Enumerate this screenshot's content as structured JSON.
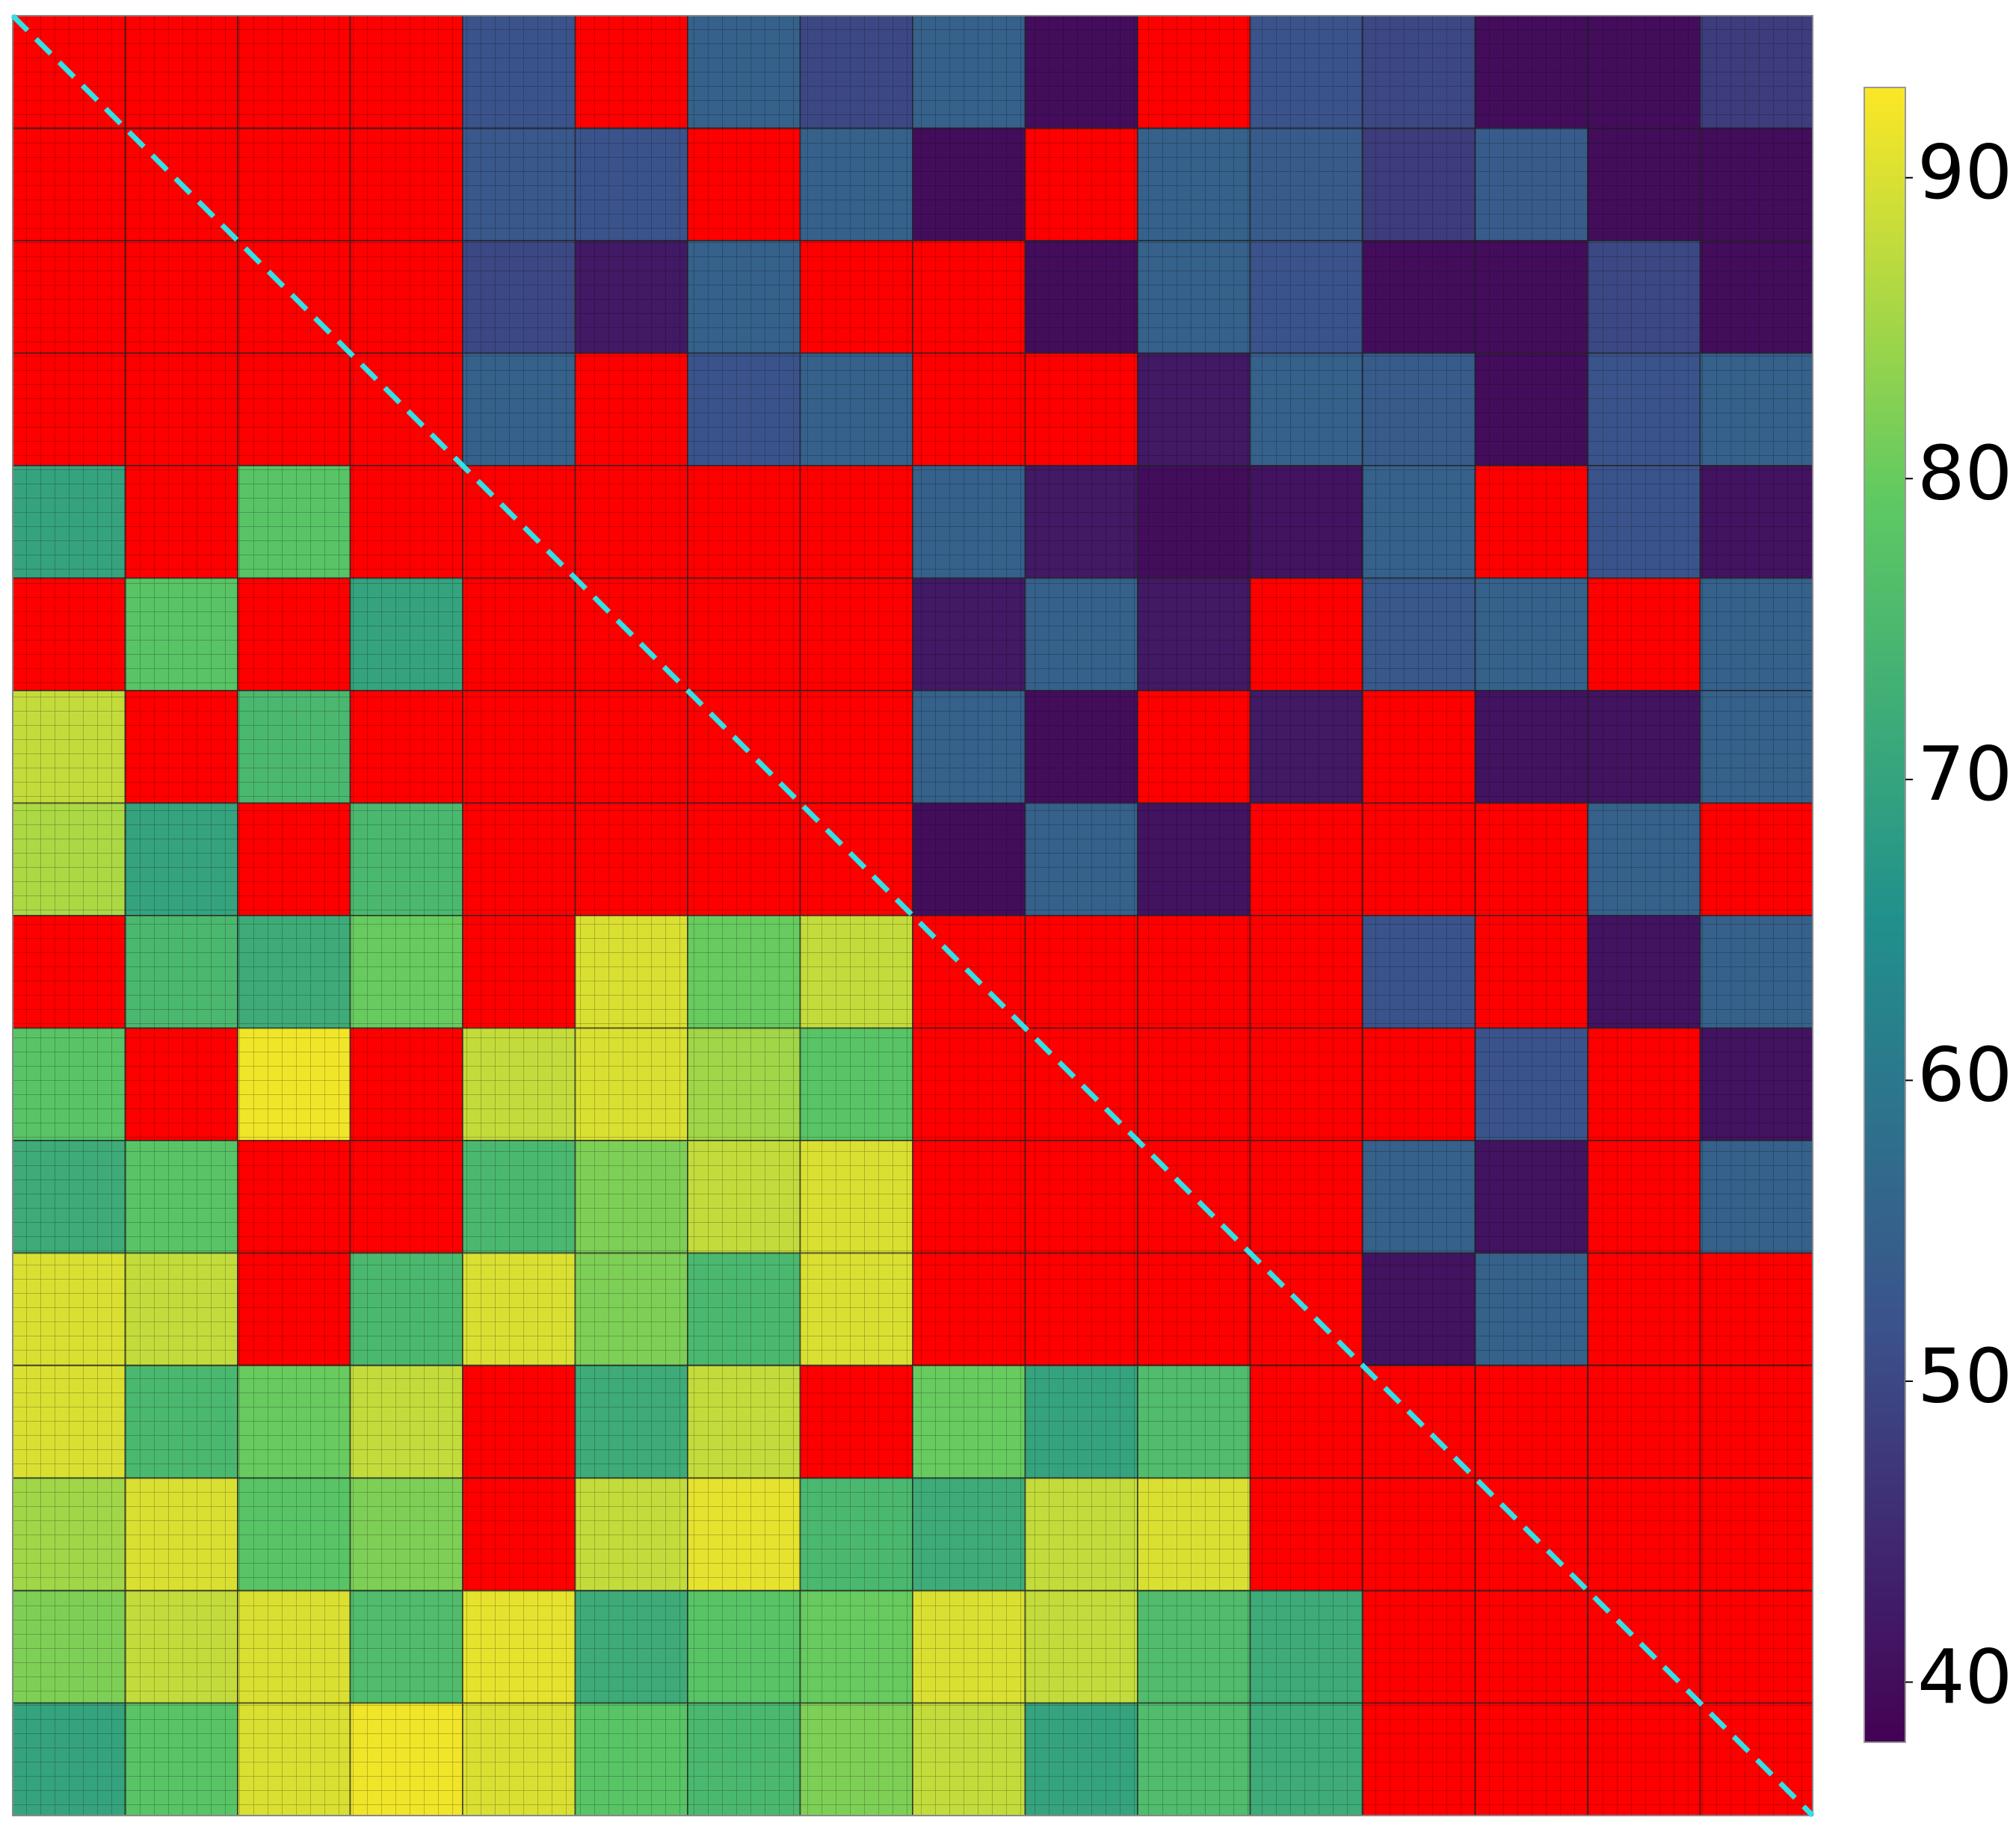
{
  "chart_data": {
    "type": "heatmap",
    "colormap": "viridis",
    "bad_color": "#ff0000",
    "diagonal_color": "#33e0e6",
    "clim": [
      38,
      93
    ],
    "cticks": [
      40,
      50,
      60,
      70,
      80,
      90
    ],
    "values": [
      [
        null,
        null,
        null,
        null,
        52,
        null,
        55,
        50,
        55,
        40,
        null,
        52,
        50,
        40,
        40,
        48
      ],
      [
        null,
        null,
        null,
        null,
        53,
        52,
        null,
        55,
        40,
        null,
        55,
        54,
        48,
        54,
        40,
        40
      ],
      [
        null,
        null,
        null,
        null,
        50,
        42,
        55,
        null,
        null,
        40,
        55,
        52,
        40,
        40,
        50,
        40
      ],
      [
        null,
        null,
        null,
        null,
        55,
        null,
        52,
        55,
        null,
        null,
        42,
        55,
        54,
        40,
        52,
        55
      ],
      [
        70,
        null,
        78,
        null,
        null,
        null,
        null,
        null,
        55,
        42,
        40,
        41,
        55,
        null,
        52,
        41
      ],
      [
        null,
        78,
        null,
        70,
        null,
        null,
        null,
        null,
        42,
        55,
        42,
        null,
        53,
        55,
        null,
        55
      ],
      [
        88,
        null,
        75,
        null,
        null,
        null,
        null,
        null,
        55,
        40,
        null,
        42,
        null,
        41,
        41,
        55
      ],
      [
        86,
        70,
        null,
        75,
        null,
        null,
        null,
        null,
        40,
        55,
        41,
        null,
        null,
        null,
        55,
        null
      ],
      [
        null,
        75,
        72,
        80,
        null,
        90,
        80,
        88,
        null,
        null,
        null,
        null,
        52,
        null,
        41,
        55
      ],
      [
        78,
        null,
        92,
        null,
        88,
        90,
        85,
        78,
        null,
        null,
        null,
        null,
        null,
        52,
        null,
        41
      ],
      [
        72,
        78,
        null,
        null,
        75,
        82,
        88,
        90,
        null,
        null,
        null,
        null,
        55,
        41,
        null,
        55
      ],
      [
        90,
        88,
        null,
        75,
        90,
        82,
        75,
        90,
        null,
        null,
        null,
        null,
        41,
        55,
        null,
        null
      ],
      [
        90,
        75,
        80,
        88,
        null,
        72,
        88,
        null,
        80,
        70,
        76,
        null,
        null,
        null,
        null,
        null
      ],
      [
        85,
        90,
        78,
        82,
        null,
        88,
        91,
        75,
        72,
        88,
        90,
        null,
        null,
        null,
        null,
        null
      ],
      [
        82,
        88,
        90,
        76,
        91,
        72,
        78,
        80,
        90,
        88,
        76,
        72,
        null,
        null,
        null,
        null
      ],
      [
        70,
        78,
        90,
        92,
        90,
        78,
        75,
        82,
        88,
        70,
        76,
        72,
        null,
        null,
        null,
        null
      ]
    ]
  }
}
